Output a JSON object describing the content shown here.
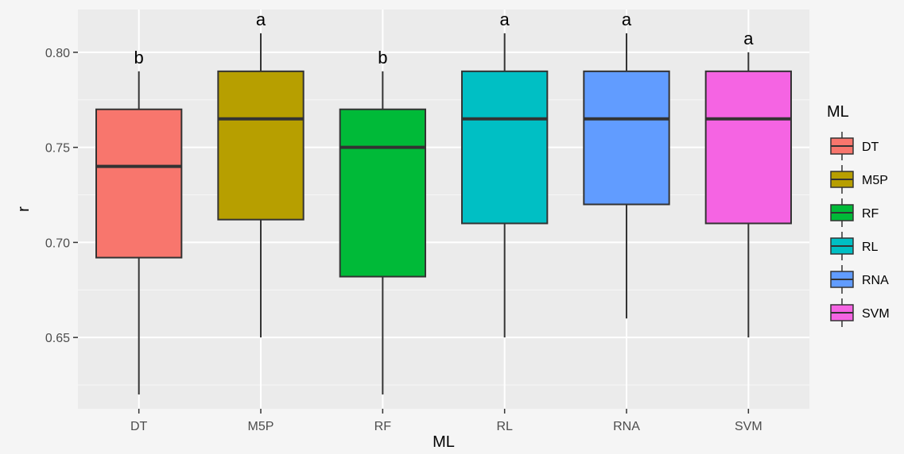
{
  "chart_data": {
    "type": "box",
    "xlabel": "ML",
    "ylabel": "r",
    "ylim": [
      0.6125,
      0.8225
    ],
    "yticks": [
      0.65,
      0.7,
      0.75,
      0.8
    ],
    "ytick_labels": [
      "0.65",
      "0.70",
      "0.75",
      "0.80"
    ],
    "grid": true,
    "legend": {
      "title": "ML",
      "position": "right"
    },
    "categories": [
      "DT",
      "M5P",
      "RF",
      "RL",
      "RNA",
      "SVM"
    ],
    "boxes": [
      {
        "name": "DT",
        "min": 0.62,
        "q1": 0.692,
        "median": 0.74,
        "q3": 0.77,
        "max": 0.79,
        "letter": "b",
        "color": "#F8766D"
      },
      {
        "name": "M5P",
        "min": 0.65,
        "q1": 0.712,
        "median": 0.765,
        "q3": 0.79,
        "max": 0.81,
        "letter": "a",
        "color": "#B79F00"
      },
      {
        "name": "RF",
        "min": 0.62,
        "q1": 0.682,
        "median": 0.75,
        "q3": 0.77,
        "max": 0.79,
        "letter": "b",
        "color": "#00BA38"
      },
      {
        "name": "RL",
        "min": 0.65,
        "q1": 0.71,
        "median": 0.765,
        "q3": 0.79,
        "max": 0.81,
        "letter": "a",
        "color": "#00BFC4"
      },
      {
        "name": "RNA",
        "min": 0.66,
        "q1": 0.72,
        "median": 0.765,
        "q3": 0.79,
        "max": 0.81,
        "letter": "a",
        "color": "#619CFF"
      },
      {
        "name": "SVM",
        "min": 0.65,
        "q1": 0.71,
        "median": 0.765,
        "q3": 0.79,
        "max": 0.8,
        "letter": "a",
        "color": "#F564E3"
      }
    ]
  }
}
